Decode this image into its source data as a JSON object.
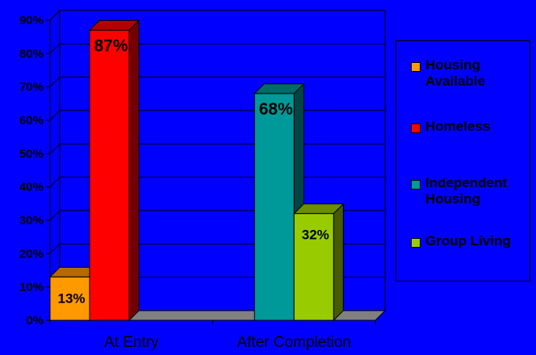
{
  "chart_data": {
    "type": "bar",
    "title": "",
    "xlabel": "",
    "ylabel": "",
    "ylim": [
      0,
      90
    ],
    "y_ticks": [
      "0%",
      "10%",
      "20%",
      "30%",
      "40%",
      "50%",
      "60%",
      "70%",
      "80%",
      "90%"
    ],
    "categories": [
      "At Entry",
      "After Completion"
    ],
    "series": [
      {
        "name": "Housing Available",
        "values": [
          13,
          0
        ],
        "color": "#ff9900",
        "labels": [
          "13%",
          ""
        ]
      },
      {
        "name": "Homeless",
        "values": [
          87,
          0
        ],
        "color": "#ff0000",
        "labels": [
          "87%",
          ""
        ]
      },
      {
        "name": "Independent Housing",
        "values": [
          0,
          68
        ],
        "color": "#009999",
        "labels": [
          "",
          "68%"
        ]
      },
      {
        "name": "Group Living",
        "values": [
          0,
          32
        ],
        "color": "#99cc00",
        "labels": [
          "",
          "32%"
        ]
      }
    ],
    "legend_position": "right",
    "grid": true,
    "style": "3d"
  }
}
